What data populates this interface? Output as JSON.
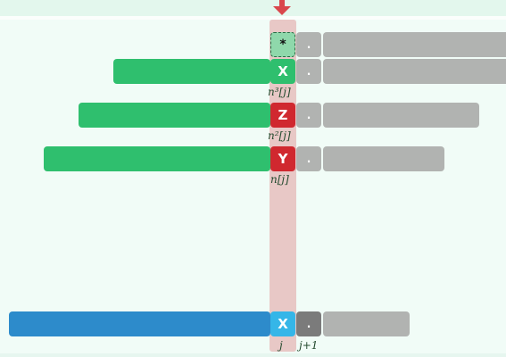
{
  "pattern_cell": {
    "text": "*"
  },
  "rows": [
    {
      "char": "X",
      "label": "n³[j]"
    },
    {
      "char": "Z",
      "label": "n²[j]"
    },
    {
      "char": "Y",
      "label": "n[j]"
    }
  ],
  "text_row": {
    "char": "X"
  },
  "dot": ".",
  "column_labels": {
    "j": "j",
    "j_plus_1": "j+1"
  },
  "colors": {
    "pattern_bar": "#2fbf6e",
    "mismatch_cell": "#d0282f",
    "text_bar": "#2d8bcb",
    "text_cell": "#35b6e8",
    "column_highlight": "#e8c8c6",
    "arrow": "#d9474c"
  }
}
